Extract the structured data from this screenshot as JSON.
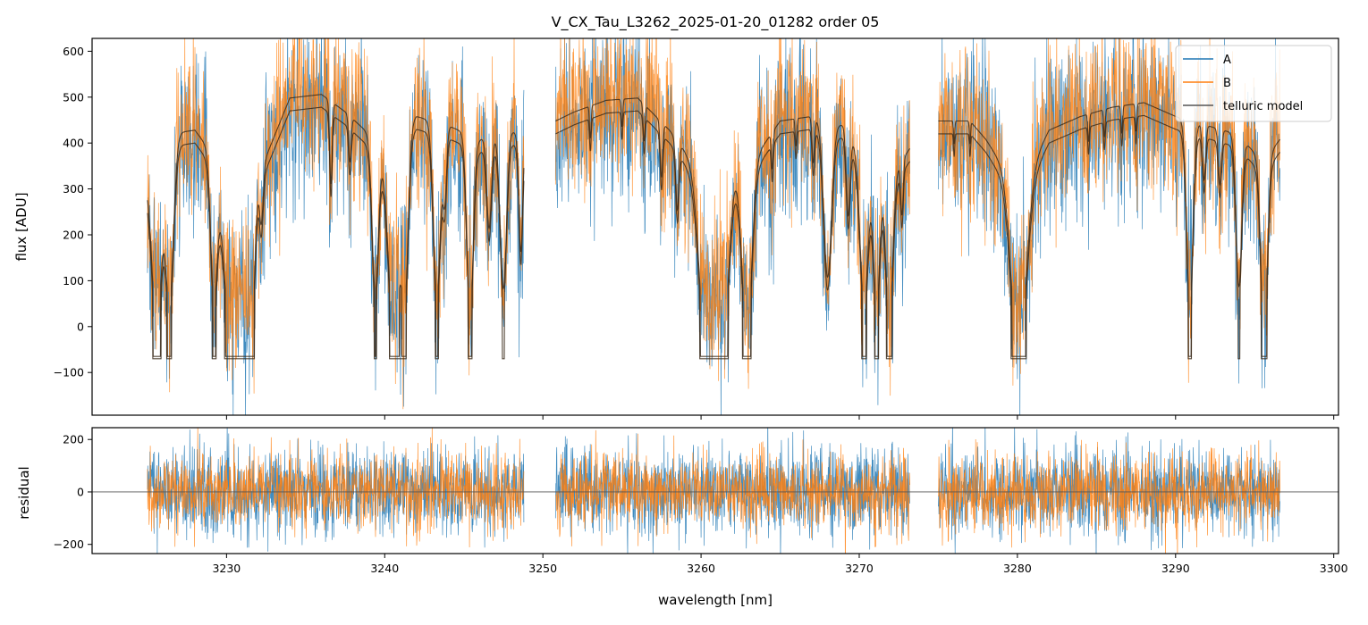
{
  "chart_data": [
    {
      "type": "line",
      "panel": "top",
      "title": "V_CX_Tau_L3262_2025-01-20_01282  order 05",
      "xlabel": "",
      "ylabel": "flux [ADU]",
      "xlim": [
        3221.5,
        3300.3
      ],
      "ylim": [
        -193,
        628
      ],
      "x_ticks": [
        3230,
        3240,
        3250,
        3260,
        3270,
        3280,
        3290,
        3300
      ],
      "x_tick_labels_visible": false,
      "y_ticks": [
        -100,
        0,
        100,
        200,
        300,
        400,
        500,
        600
      ],
      "y_tick_labels": [
        "−100",
        "0",
        "100",
        "200",
        "300",
        "400",
        "500",
        "600"
      ],
      "x_segments": [
        [
          3225.0,
          3248.8
        ],
        [
          3250.8,
          3273.2
        ],
        [
          3275.0,
          3296.6
        ]
      ],
      "model_A": {
        "continuum": [
          [
            3225.0,
            300
          ],
          [
            3226.0,
            390
          ],
          [
            3228.0,
            400
          ],
          [
            3229.5,
            330
          ],
          [
            3231.0,
            250
          ],
          [
            3232.0,
            300
          ],
          [
            3234.0,
            470
          ],
          [
            3236.0,
            478
          ],
          [
            3237.5,
            440
          ],
          [
            3240.0,
            360
          ],
          [
            3242.0,
            430
          ],
          [
            3244.0,
            410
          ],
          [
            3246.0,
            380
          ],
          [
            3248.0,
            400
          ],
          [
            3248.8,
            380
          ],
          [
            3250.8,
            420
          ],
          [
            3252.0,
            440
          ],
          [
            3254.0,
            465
          ],
          [
            3256.0,
            470
          ],
          [
            3258.0,
            400
          ],
          [
            3259.5,
            330
          ],
          [
            3261.0,
            300
          ],
          [
            3263.0,
            320
          ],
          [
            3265.0,
            420
          ],
          [
            3267.0,
            430
          ],
          [
            3269.0,
            410
          ],
          [
            3270.5,
            330
          ],
          [
            3272.0,
            300
          ],
          [
            3273.2,
            360
          ],
          [
            3275.0,
            420
          ],
          [
            3277.0,
            420
          ],
          [
            3278.0,
            380
          ],
          [
            3279.5,
            300
          ],
          [
            3281.0,
            330
          ],
          [
            3282.0,
            400
          ],
          [
            3284.0,
            430
          ],
          [
            3286.0,
            450
          ],
          [
            3288.0,
            460
          ],
          [
            3290.0,
            430
          ],
          [
            3292.0,
            410
          ],
          [
            3294.0,
            390
          ],
          [
            3295.5,
            330
          ],
          [
            3296.6,
            380
          ]
        ],
        "lines": [
          [
            3225.6,
            0.3,
            390
          ],
          [
            3226.4,
            0.25,
            360
          ],
          [
            3229.2,
            0.2,
            300
          ],
          [
            3230.3,
            0.45,
            360
          ],
          [
            3231.2,
            0.3,
            300
          ],
          [
            3231.7,
            0.15,
            180
          ],
          [
            3232.2,
            0.12,
            120
          ],
          [
            3236.6,
            0.08,
            180
          ],
          [
            3237.8,
            0.08,
            100
          ],
          [
            3239.4,
            0.2,
            330
          ],
          [
            3240.6,
            0.35,
            440
          ],
          [
            3241.3,
            0.2,
            320
          ],
          [
            3243.3,
            0.22,
            380
          ],
          [
            3243.8,
            0.12,
            150
          ],
          [
            3245.4,
            0.2,
            390
          ],
          [
            3246.6,
            0.15,
            200
          ],
          [
            3247.5,
            0.2,
            340
          ],
          [
            3248.6,
            0.12,
            250
          ],
          [
            3253.0,
            0.05,
            70
          ],
          [
            3255.0,
            0.05,
            60
          ],
          [
            3256.4,
            0.06,
            80
          ],
          [
            3257.5,
            0.08,
            120
          ],
          [
            3258.5,
            0.1,
            150
          ],
          [
            3260.4,
            0.45,
            450
          ],
          [
            3261.5,
            0.3,
            300
          ],
          [
            3262.9,
            0.3,
            380
          ],
          [
            3264.5,
            0.06,
            80
          ],
          [
            3266.0,
            0.05,
            60
          ],
          [
            3267.1,
            0.08,
            100
          ],
          [
            3268.0,
            0.25,
            340
          ],
          [
            3269.3,
            0.12,
            180
          ],
          [
            3270.3,
            0.25,
            320
          ],
          [
            3271.1,
            0.2,
            300
          ],
          [
            3271.9,
            0.22,
            320
          ],
          [
            3272.7,
            0.08,
            120
          ],
          [
            3276.0,
            0.04,
            50
          ],
          [
            3277.0,
            0.04,
            50
          ],
          [
            3280.1,
            0.45,
            420
          ],
          [
            3284.5,
            0.05,
            60
          ],
          [
            3285.5,
            0.05,
            60
          ],
          [
            3286.6,
            0.05,
            60
          ],
          [
            3287.5,
            0.05,
            60
          ],
          [
            3290.9,
            0.2,
            400
          ],
          [
            3291.8,
            0.1,
            120
          ],
          [
            3292.8,
            0.1,
            120
          ],
          [
            3294.0,
            0.18,
            330
          ],
          [
            3295.6,
            0.2,
            400
          ]
        ]
      },
      "model_B_flux_offset": 28,
      "series": [
        {
          "name": "A",
          "color": "#1f77b4",
          "noise_sigma": 95,
          "floor": 75,
          "seed": 101
        },
        {
          "name": "B",
          "color": "#ff7f0e",
          "noise_sigma": 88,
          "floor": 80,
          "seed": 202
        },
        {
          "name": "telluric model",
          "color": "#3a2a1a",
          "note": "two model curves, one per spectrum (A and B)"
        }
      ],
      "legend": {
        "position": "top-right",
        "entries": [
          {
            "label": "A",
            "color": "#1f77b4"
          },
          {
            "label": "B",
            "color": "#ff7f0e"
          },
          {
            "label": "telluric model",
            "color": "#555555"
          }
        ]
      }
    },
    {
      "type": "line",
      "panel": "bottom",
      "xlabel": "wavelength [nm]",
      "ylabel": "residual",
      "xlim": [
        3221.5,
        3300.3
      ],
      "ylim": [
        -235,
        245
      ],
      "x_ticks": [
        3230,
        3240,
        3250,
        3260,
        3270,
        3280,
        3290,
        3300
      ],
      "x_tick_labels": [
        "3230",
        "3240",
        "3250",
        "3260",
        "3270",
        "3280",
        "3290",
        "3300"
      ],
      "y_ticks": [
        -200,
        0,
        200
      ],
      "y_tick_labels": [
        "−200",
        "0",
        "200"
      ],
      "zero_line": 0,
      "x_segments": [
        [
          3225.0,
          3248.8
        ],
        [
          3250.8,
          3273.2
        ],
        [
          3275.0,
          3296.6
        ]
      ],
      "series": [
        {
          "name": "A",
          "color": "#1f77b4",
          "residual_sigma": 85,
          "seed": 303
        },
        {
          "name": "B",
          "color": "#ff7f0e",
          "residual_sigma": 72,
          "seed": 404
        }
      ]
    }
  ]
}
